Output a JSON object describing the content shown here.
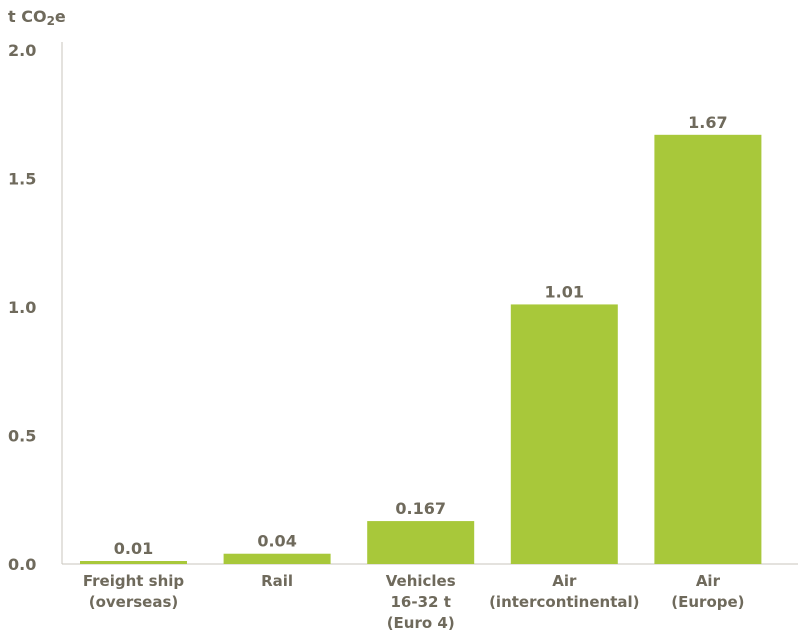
{
  "chart_data": {
    "type": "bar",
    "ylabel": "t CO2e",
    "ylim": [
      0,
      2.0
    ],
    "yticks": [
      "0.0",
      "0.5",
      "1.0",
      "1.5",
      "2.0"
    ],
    "grid": false,
    "categories": [
      [
        "Freight ship",
        "(overseas)"
      ],
      [
        "Rail"
      ],
      [
        "Vehicles",
        "16-32 t",
        "(Euro 4)"
      ],
      [
        "Air",
        "(intercontinental)"
      ],
      [
        "Air",
        "(Europe)"
      ]
    ],
    "values": [
      0.01,
      0.04,
      0.167,
      1.01,
      1.67
    ],
    "value_labels": [
      "0.01",
      "0.04",
      "0.167",
      "1.01",
      "1.67"
    ]
  },
  "colors": {
    "bar": "#a8c83a",
    "text": "#6f6a5c",
    "axis": "#c9c6bd"
  }
}
